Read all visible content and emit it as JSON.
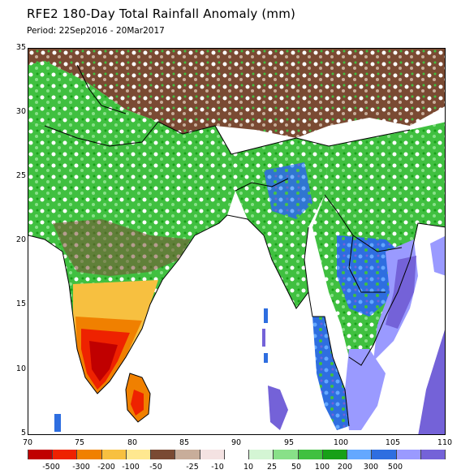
{
  "title": "RFE2 180-Day Total Rainfall Anomaly (mm)",
  "period": "Period: 22Sep2016 - 20Mar2017",
  "axes": {
    "y_ticks": [
      "35",
      "30",
      "25",
      "20",
      "15",
      "10",
      "5"
    ],
    "x_ticks": [
      "70",
      "75",
      "80",
      "85",
      "90",
      "95",
      "100",
      "105",
      "110"
    ]
  },
  "legend": {
    "colors": [
      "#c00000",
      "#ee2200",
      "#f08000",
      "#f7c040",
      "#ffe890",
      "#7a4a33",
      "#c8ad9a",
      "#f4e2e2",
      "#ffffff",
      "#d4f5d4",
      "#88e088",
      "#40c040",
      "#18a018",
      "#64a8ff",
      "#2e6ee0",
      "#9a9aff",
      "#7462d8"
    ],
    "labels": [
      "-500",
      "-300",
      "-200",
      "-100",
      "-50",
      "-25",
      "-10",
      "10",
      "25",
      "50",
      "100",
      "200",
      "300",
      "500"
    ]
  },
  "colors": {
    "dry_severe": "#c00000",
    "dry_strong": "#ee2200",
    "dry_moderate": "#f08000",
    "dry_light": "#f7c040",
    "dry_slight": "#ffe890",
    "dry_brown": "#7a4a33",
    "near_normal": "#ffffff",
    "wet_light": "#88e088",
    "wet_moderate": "#40c040",
    "wet_blue": "#2e6ee0",
    "wet_purple": "#7462d8",
    "land_outline": "#000000",
    "ocean": "#ffffff"
  }
}
